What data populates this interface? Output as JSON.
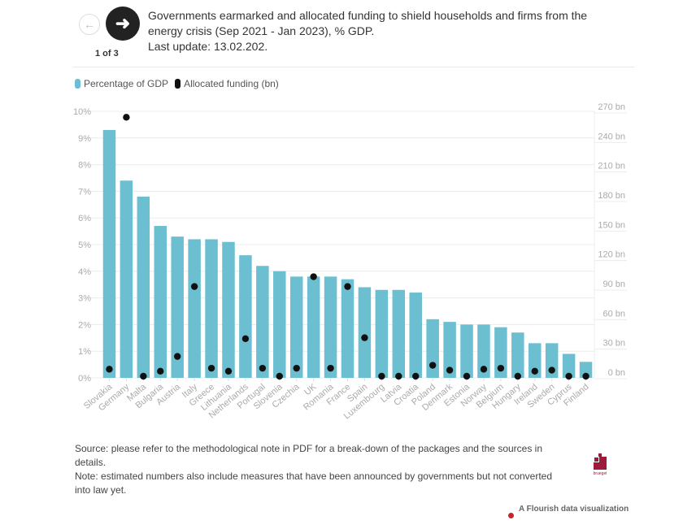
{
  "header": {
    "title_line1": "Governments earmarked and allocated funding to shield households and firms from the",
    "title_line2": "energy crisis (Sep 2021 - Jan 2023), % GDP.",
    "title_line3": "Last update: 13.02.202.",
    "pager": "1 of 3",
    "prev_icon": "arrow-left-icon",
    "next_icon": "arrow-right-icon"
  },
  "legend": [
    {
      "label": "Percentage of GDP",
      "color": "#6bbfd0"
    },
    {
      "label": "Allocated funding (bn)",
      "color": "#111111"
    }
  ],
  "chart_data": {
    "type": "bar",
    "title": "Governments earmarked and allocated funding to shield households and firms from the energy crisis (Sep 2021 - Jan 2023), % GDP.",
    "categories": [
      "Slovakia",
      "Germany",
      "Malta",
      "Bulgaria",
      "Austria",
      "Italy",
      "Greece",
      "Lithuania",
      "Netherlands",
      "Portugal",
      "Slovenia",
      "Czechia",
      "UK",
      "Romania",
      "France",
      "Spain",
      "Luxembourg",
      "Latvia",
      "Croatia",
      "Poland",
      "Denmark",
      "Estonia",
      "Norway",
      "Belgium",
      "Hungary",
      "Ireland",
      "Sweden",
      "Cyprus",
      "Finland"
    ],
    "series": [
      {
        "name": "Percentage of GDP",
        "type": "bar",
        "axis": "left",
        "color": "#6bbfd0",
        "values": [
          9.3,
          7.4,
          6.8,
          5.7,
          5.3,
          5.2,
          5.2,
          5.1,
          4.6,
          4.2,
          4.0,
          3.8,
          3.8,
          3.8,
          3.7,
          3.4,
          3.3,
          3.3,
          3.2,
          2.2,
          2.1,
          2.0,
          2.0,
          1.9,
          1.7,
          1.3,
          1.3,
          0.9,
          0.6
        ]
      },
      {
        "name": "Allocated funding (bn)",
        "type": "scatter",
        "axis": "right",
        "color": "#111111",
        "values": [
          3,
          259,
          0,
          1,
          16,
          87,
          4,
          1,
          34,
          4,
          0,
          4,
          97,
          4,
          87,
          35,
          0,
          0,
          0,
          7,
          2,
          0,
          3,
          4,
          0,
          1,
          2,
          0,
          0
        ]
      }
    ],
    "left_axis": {
      "ylim": [
        0,
        10
      ],
      "ticks": [
        0,
        1,
        2,
        3,
        4,
        5,
        6,
        7,
        8,
        9,
        10
      ],
      "tick_suffix": "%"
    },
    "right_axis": {
      "ylim": [
        0,
        270
      ],
      "ticks": [
        0,
        30,
        60,
        90,
        120,
        150,
        180,
        210,
        240,
        270
      ],
      "tick_suffix": " bn"
    },
    "xlabel": "",
    "ylabel": "",
    "grid": true,
    "legend_position": "top-left"
  },
  "footer": {
    "source": "Source: please refer to the methodological note in PDF for a break-down of the packages and the sources in details.",
    "note": "Note: estimated numbers also include measures that have been announced by governments but not converted into law yet.",
    "logo_text": "bruegel",
    "credit": "A Flourish data visualization"
  }
}
